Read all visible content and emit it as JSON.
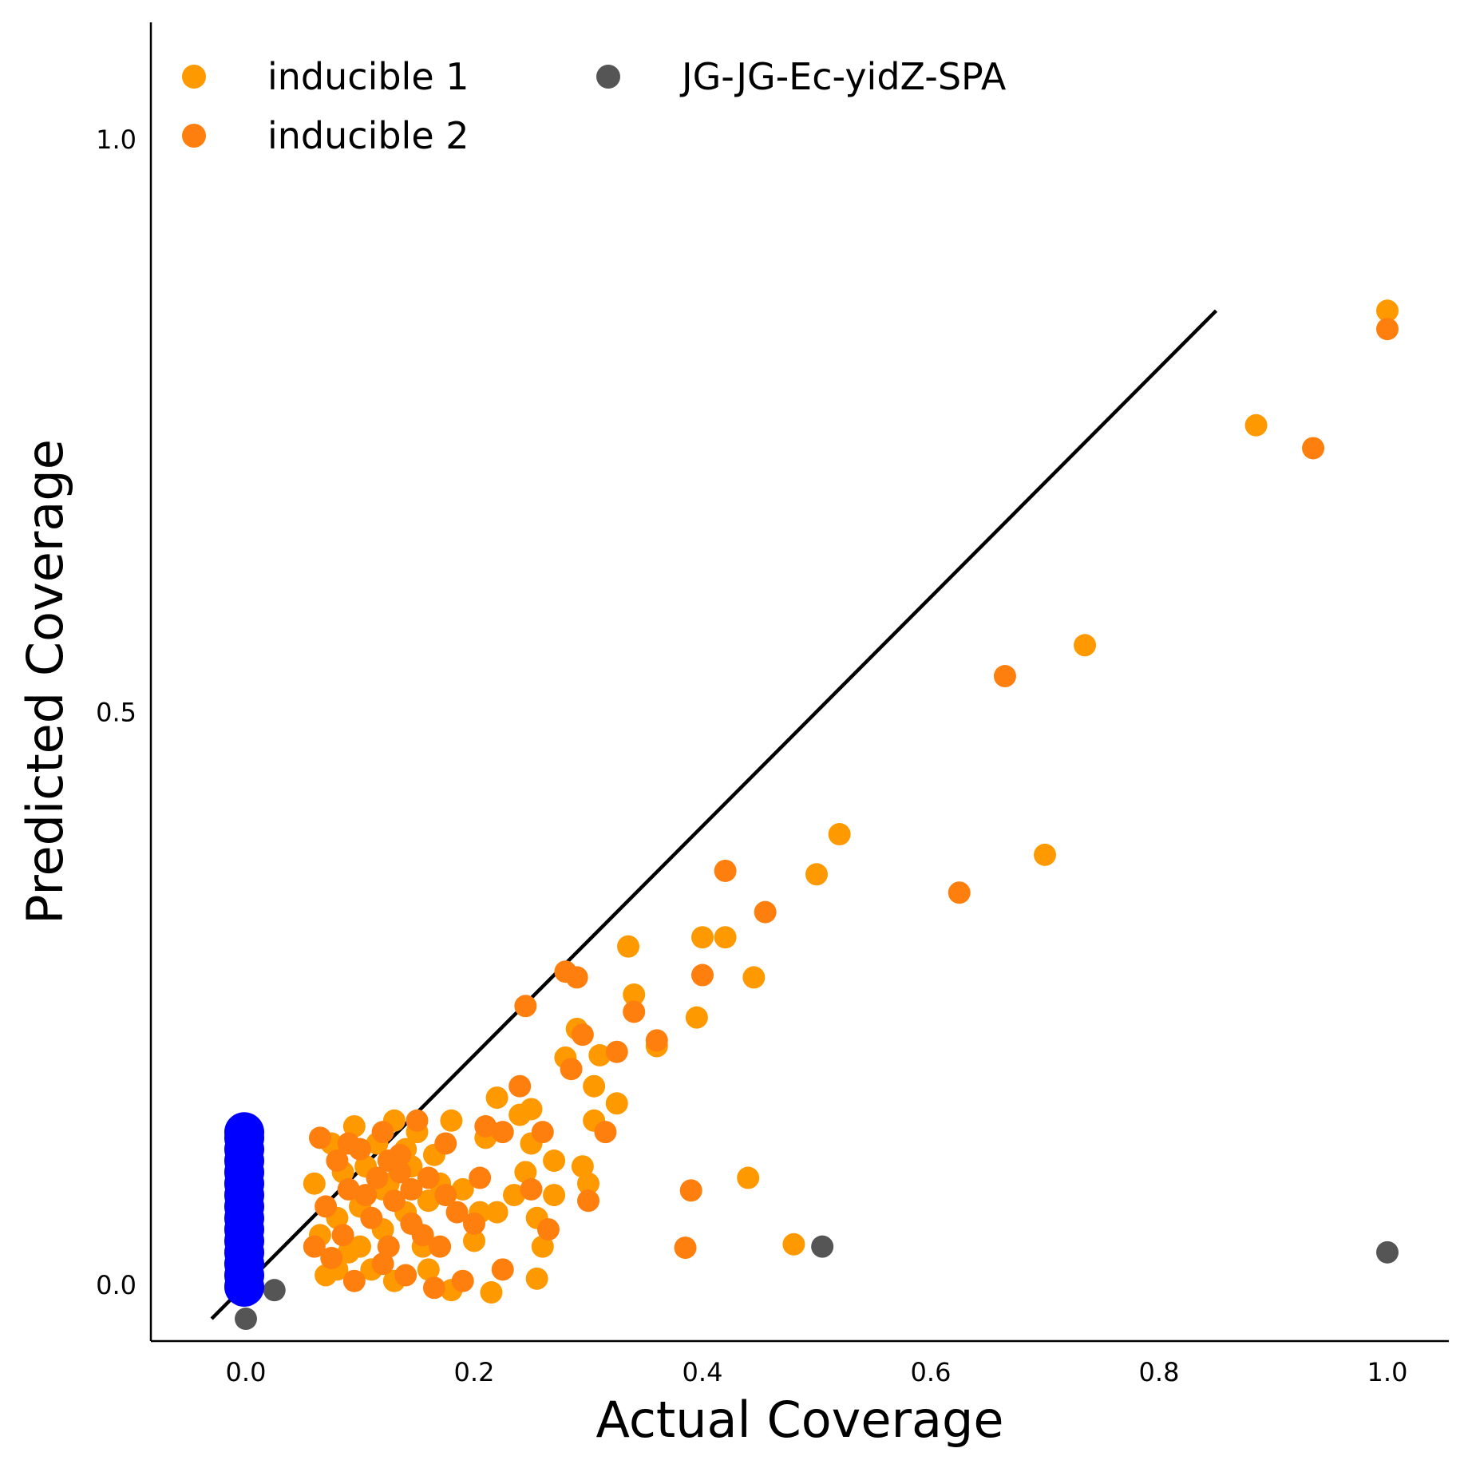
{
  "chart_data": {
    "type": "scatter",
    "xlabel": "Actual Coverage",
    "ylabel": "Predicted Coverage",
    "xlim": [
      -0.08,
      1.05
    ],
    "ylim": [
      -0.05,
      1.1
    ],
    "xticks": [
      0.0,
      0.2,
      0.4,
      0.6,
      0.8,
      1.0
    ],
    "xtick_labels": [
      "0.0",
      "0.2",
      "0.4",
      "0.6",
      "0.8",
      "1.0"
    ],
    "yticks": [
      0.0,
      0.5,
      1.0
    ],
    "ytick_labels": [
      "0.0",
      "0.5",
      "1.0"
    ],
    "grid": false,
    "legend": {
      "placement": "top-left",
      "columns": 2
    },
    "reference_line": {
      "x": [
        -0.03,
        0.85
      ],
      "y": [
        -0.03,
        0.85
      ],
      "color": "#000000"
    },
    "series": [
      {
        "name": "inducible 1",
        "color": "#FF9900",
        "points": [
          [
            1.0,
            0.85
          ],
          [
            0.885,
            0.75
          ],
          [
            0.735,
            0.558
          ],
          [
            0.7,
            0.375
          ],
          [
            0.52,
            0.393
          ],
          [
            0.5,
            0.358
          ],
          [
            0.48,
            0.035
          ],
          [
            0.44,
            0.093
          ],
          [
            0.445,
            0.268
          ],
          [
            0.42,
            0.303
          ],
          [
            0.4,
            0.303
          ],
          [
            0.395,
            0.233
          ],
          [
            0.335,
            0.295
          ],
          [
            0.34,
            0.253
          ],
          [
            0.36,
            0.208
          ],
          [
            0.325,
            0.158
          ],
          [
            0.31,
            0.2
          ],
          [
            0.305,
            0.173
          ],
          [
            0.305,
            0.143
          ],
          [
            0.3,
            0.088
          ],
          [
            0.295,
            0.103
          ],
          [
            0.29,
            0.223
          ],
          [
            0.28,
            0.198
          ],
          [
            0.27,
            0.108
          ],
          [
            0.27,
            0.078
          ],
          [
            0.26,
            0.033
          ],
          [
            0.255,
            0.005
          ],
          [
            0.255,
            0.058
          ],
          [
            0.25,
            0.153
          ],
          [
            0.25,
            0.123
          ],
          [
            0.245,
            0.098
          ],
          [
            0.24,
            0.148
          ],
          [
            0.235,
            0.078
          ],
          [
            0.22,
            0.163
          ],
          [
            0.22,
            0.063
          ],
          [
            0.21,
            0.128
          ],
          [
            0.205,
            0.063
          ],
          [
            0.2,
            0.038
          ],
          [
            0.19,
            0.083
          ],
          [
            0.18,
            0.143
          ],
          [
            0.17,
            0.088
          ],
          [
            0.165,
            0.113
          ],
          [
            0.16,
            0.073
          ],
          [
            0.155,
            0.033
          ],
          [
            0.15,
            0.133
          ],
          [
            0.145,
            0.103
          ],
          [
            0.14,
            0.063
          ],
          [
            0.13,
            0.143
          ],
          [
            0.125,
            0.088
          ],
          [
            0.12,
            0.048
          ],
          [
            0.115,
            0.123
          ],
          [
            0.11,
            0.013
          ],
          [
            0.105,
            0.103
          ],
          [
            0.1,
            0.068
          ],
          [
            0.095,
            0.138
          ],
          [
            0.09,
            0.028
          ],
          [
            0.085,
            0.098
          ],
          [
            0.08,
            0.058
          ],
          [
            0.075,
            0.123
          ],
          [
            0.07,
            0.008
          ],
          [
            0.065,
            0.043
          ],
          [
            0.06,
            0.088
          ],
          [
            0.215,
            -0.007
          ],
          [
            0.18,
            -0.005
          ],
          [
            0.12,
            0.083
          ],
          [
            0.14,
            0.118
          ],
          [
            0.1,
            0.033
          ],
          [
            0.13,
            0.003
          ],
          [
            0.16,
            0.013
          ],
          [
            0.08,
            0.013
          ]
        ]
      },
      {
        "name": "inducible 2",
        "color": "#FF7F0E",
        "points": [
          [
            1.0,
            0.834
          ],
          [
            0.935,
            0.73
          ],
          [
            0.665,
            0.531
          ],
          [
            0.625,
            0.342
          ],
          [
            0.455,
            0.325
          ],
          [
            0.42,
            0.361
          ],
          [
            0.4,
            0.27
          ],
          [
            0.39,
            0.082
          ],
          [
            0.385,
            0.032
          ],
          [
            0.36,
            0.213
          ],
          [
            0.34,
            0.238
          ],
          [
            0.325,
            0.203
          ],
          [
            0.315,
            0.133
          ],
          [
            0.3,
            0.073
          ],
          [
            0.295,
            0.218
          ],
          [
            0.29,
            0.268
          ],
          [
            0.285,
            0.188
          ],
          [
            0.28,
            0.273
          ],
          [
            0.265,
            0.048
          ],
          [
            0.26,
            0.133
          ],
          [
            0.25,
            0.083
          ],
          [
            0.245,
            0.243
          ],
          [
            0.24,
            0.173
          ],
          [
            0.225,
            0.013
          ],
          [
            0.225,
            0.133
          ],
          [
            0.21,
            0.138
          ],
          [
            0.205,
            0.093
          ],
          [
            0.2,
            0.053
          ],
          [
            0.19,
            0.003
          ],
          [
            0.185,
            0.063
          ],
          [
            0.175,
            0.123
          ],
          [
            0.17,
            0.033
          ],
          [
            0.16,
            0.093
          ],
          [
            0.15,
            0.143
          ],
          [
            0.145,
            0.053
          ],
          [
            0.14,
            0.008
          ],
          [
            0.135,
            0.113
          ],
          [
            0.13,
            0.073
          ],
          [
            0.125,
            0.033
          ],
          [
            0.12,
            0.133
          ],
          [
            0.115,
            0.093
          ],
          [
            0.11,
            0.058
          ],
          [
            0.1,
            0.118
          ],
          [
            0.095,
            0.003
          ],
          [
            0.09,
            0.083
          ],
          [
            0.085,
            0.043
          ],
          [
            0.08,
            0.108
          ],
          [
            0.075,
            0.023
          ],
          [
            0.07,
            0.068
          ],
          [
            0.065,
            0.128
          ],
          [
            0.06,
            0.033
          ],
          [
            0.12,
            0.018
          ],
          [
            0.155,
            0.043
          ],
          [
            0.175,
            0.078
          ],
          [
            0.135,
            0.098
          ],
          [
            0.105,
            0.078
          ],
          [
            0.09,
            0.123
          ],
          [
            0.165,
            -0.003
          ],
          [
            0.125,
            0.108
          ],
          [
            0.145,
            0.083
          ]
        ]
      },
      {
        "name": "JG-JG-Ec-yidZ-SPA",
        "color": "#555555",
        "points": [
          [
            1.0,
            0.028
          ],
          [
            0.505,
            0.033
          ],
          [
            0.025,
            -0.005
          ],
          [
            0.0,
            -0.03
          ]
        ]
      },
      {
        "name": "",
        "color": "#0000FF",
        "points": [
          [
            0.0,
            0.0
          ],
          [
            0.0,
            0.01
          ],
          [
            0.0,
            0.02
          ],
          [
            0.0,
            0.03
          ],
          [
            0.0,
            0.04
          ],
          [
            0.0,
            0.05
          ],
          [
            0.0,
            0.06
          ],
          [
            0.0,
            0.07
          ],
          [
            0.0,
            0.08
          ],
          [
            0.0,
            0.09
          ],
          [
            0.0,
            0.1
          ],
          [
            0.0,
            0.11
          ],
          [
            0.0,
            0.12
          ],
          [
            0.0,
            0.13
          ],
          [
            0.0,
            0.135
          ]
        ]
      }
    ]
  }
}
